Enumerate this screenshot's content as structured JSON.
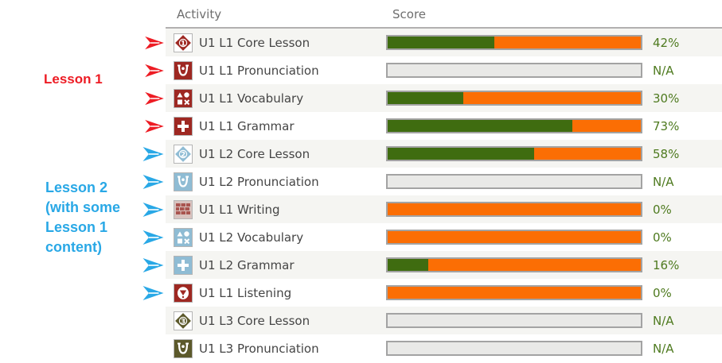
{
  "header": {
    "activity": "Activity",
    "score": "Score"
  },
  "annotations": {
    "lesson1": {
      "text": "Lesson 1",
      "color": "#ed1c24"
    },
    "lesson2": {
      "text": "Lesson 2\n(with some\nLesson 1\ncontent)",
      "color": "#29a8e6"
    }
  },
  "colors": {
    "bar_complete_green": "#3f6c10",
    "bar_remaining_orange": "#fb6e04",
    "bar_na_gray": "#e9e9e7",
    "bar_border": "#a3a3a3",
    "score_text_green": "#4e7a1f",
    "lesson1_icon_red": "#9e2822",
    "lesson2_icon_blue": "#8fbcd4",
    "lesson3_icon_olive": "#5c592b",
    "row_stripe": "#f5f5f2"
  },
  "rows": [
    {
      "label": "U1 L1 Core Lesson",
      "score": "42%",
      "pct": 42,
      "icon": "core-lesson-1-icon",
      "arrow": "red-arrow"
    },
    {
      "label": "U1 L1 Pronunciation",
      "score": "N/A",
      "pct": null,
      "icon": "pronunciation-icon",
      "arrow": "red-arrow"
    },
    {
      "label": "U1 L1 Vocabulary",
      "score": "30%",
      "pct": 30,
      "icon": "vocabulary-icon",
      "arrow": "red-arrow"
    },
    {
      "label": "U1 L1 Grammar",
      "score": "73%",
      "pct": 73,
      "icon": "grammar-icon",
      "arrow": "red-arrow"
    },
    {
      "label": "U1 L2 Core Lesson",
      "score": "58%",
      "pct": 58,
      "icon": "core-lesson-2-icon",
      "arrow": "blue-arrow"
    },
    {
      "label": "U1 L2 Pronunciation",
      "score": "N/A",
      "pct": null,
      "icon": "pronunciation-icon",
      "arrow": "blue-arrow"
    },
    {
      "label": "U1 L1 Writing",
      "score": "0%",
      "pct": 0,
      "icon": "writing-icon",
      "arrow": "blue-arrow"
    },
    {
      "label": "U1 L2 Vocabulary",
      "score": "0%",
      "pct": 0,
      "icon": "vocabulary-icon",
      "arrow": "blue-arrow"
    },
    {
      "label": "U1 L2 Grammar",
      "score": "16%",
      "pct": 16,
      "icon": "grammar-icon",
      "arrow": "blue-arrow"
    },
    {
      "label": "U1 L1 Listening",
      "score": "0%",
      "pct": 0,
      "icon": "listening-icon",
      "arrow": "blue-arrow"
    },
    {
      "label": "U1 L3 Core Lesson",
      "score": "N/A",
      "pct": null,
      "icon": "core-lesson-3-icon",
      "arrow": null
    },
    {
      "label": "U1 L3 Pronunciation",
      "score": "N/A",
      "pct": null,
      "icon": "pronunciation-icon",
      "arrow": null
    }
  ]
}
